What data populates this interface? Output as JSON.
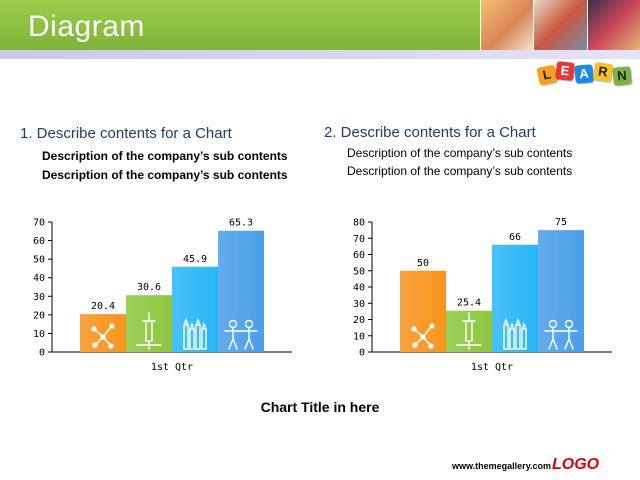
{
  "slide": {
    "title": "Diagram",
    "section1_title": "1. Describe contents for a Chart",
    "section2_title": "2. Describe contents for a Chart",
    "section1_desc": [
      "Description of the company’s sub contents",
      "Description of the company’s sub contents"
    ],
    "section2_desc": [
      "Description of the company’s sub contents",
      "Description of the company’s sub contents"
    ],
    "chart_title": "Chart Title in here",
    "footer_url": "www.themegallery.com",
    "footer_logo": "LOGO",
    "learn_letters": [
      "L",
      "E",
      "A",
      "R",
      "N"
    ]
  },
  "colors": {
    "header_green": "#8cc043",
    "title_blue": "#1f3c6d",
    "logo_red": "#e00000",
    "bar_orange": "#f7941d",
    "bar_green": "#8dc63f",
    "bar_cyan": "#29b6f6",
    "bar_blue": "#4a9fe8"
  },
  "chart_data": [
    {
      "type": "bar",
      "categories": [
        "1st Qtr"
      ],
      "series": [
        {
          "values": [
            20.4
          ],
          "color": "#f7941d",
          "icon": "molecule-icon"
        },
        {
          "values": [
            30.6
          ],
          "color": "#8dc63f",
          "icon": "syringe-icon"
        },
        {
          "values": [
            45.9
          ],
          "color": "#29b6f6",
          "icon": "pencils-icon"
        },
        {
          "values": [
            65.3
          ],
          "color": "#4a9fe8",
          "icon": "people-icon"
        }
      ],
      "yticks": [
        "0",
        "10",
        "20",
        "30",
        "40",
        "50",
        "60",
        "70"
      ],
      "value_labels": [
        "20.4",
        "30.6",
        "45.9",
        "65.3"
      ],
      "ylim": [
        0,
        70
      ],
      "xlabel": "1st Qtr"
    },
    {
      "type": "bar",
      "categories": [
        "1st Qtr"
      ],
      "series": [
        {
          "values": [
            50
          ],
          "color": "#f7941d",
          "icon": "molecule-icon"
        },
        {
          "values": [
            25.4
          ],
          "color": "#8dc63f",
          "icon": "syringe-icon"
        },
        {
          "values": [
            66
          ],
          "color": "#29b6f6",
          "icon": "pencils-icon"
        },
        {
          "values": [
            75
          ],
          "color": "#4a9fe8",
          "icon": "people-icon"
        }
      ],
      "yticks": [
        "0",
        "10",
        "20",
        "30",
        "40",
        "50",
        "60",
        "70",
        "80"
      ],
      "value_labels": [
        "50",
        "25.4",
        "66",
        "75"
      ],
      "ylim": [
        0,
        80
      ],
      "xlabel": "1st Qtr"
    }
  ]
}
